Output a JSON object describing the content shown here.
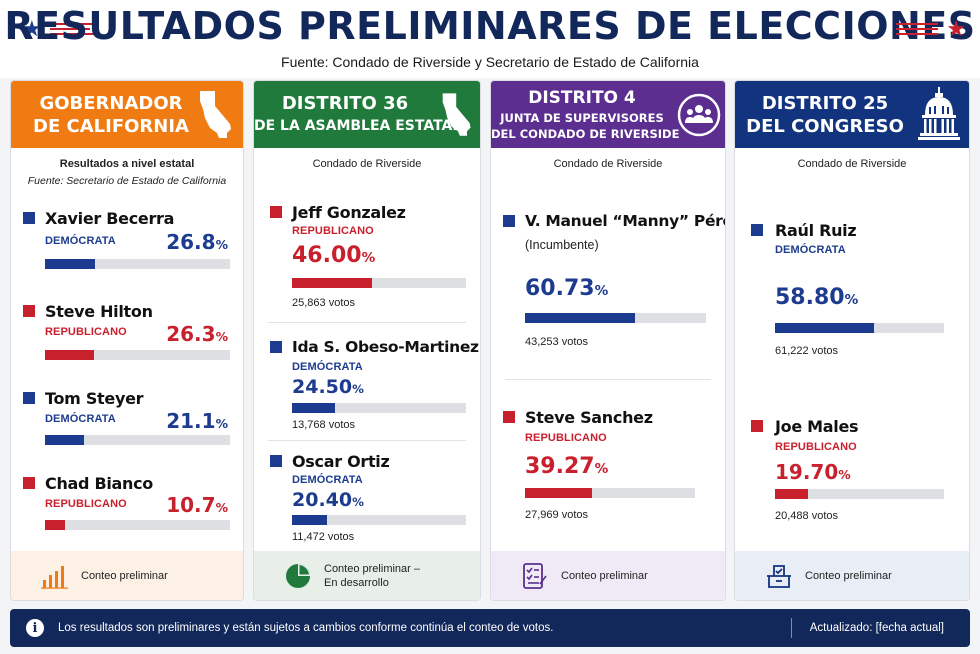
{
  "header": {
    "title": "RESULTADOS PRELIMINARES DE ELECCIONES",
    "subtitle": "Fuente: Condado de Riverside y Secretario de Estado de California",
    "star_icon": "star-icon"
  },
  "colors": {
    "governor": "#f07b12",
    "assembly": "#1f7a3c",
    "supervisors": "#5b2e8f",
    "congress": "#12347e",
    "democrat": "#1d3c8f",
    "republican": "#c8202d",
    "footer": "#12275a"
  },
  "cards": [
    {
      "title_line1": "GOBERNADOR",
      "title_line2": "DE CALIFORNIA",
      "icon": "california-map-icon",
      "scope": "Resultados a nivel estatal",
      "scope_source": "Fuente: Secretario de Estado de California",
      "candidates": [
        {
          "name": "Xavier Becerra",
          "party": "DEMÓCRATA",
          "percent": "26.8",
          "symbol": "%",
          "share": 0.268
        },
        {
          "name": "Steve Hilton",
          "party": "REPUBLICANO",
          "percent": "26.3",
          "symbol": "%",
          "share": 0.263
        },
        {
          "name": "Tom Steyer",
          "party": "DEMÓCRATA",
          "percent": "21.1",
          "symbol": "%",
          "share": 0.211
        },
        {
          "name": "Chad Bianco",
          "party": "REPUBLICANO",
          "percent": "10.7",
          "symbol": "%",
          "share": 0.107
        }
      ],
      "footer_text": "Conteo preliminar",
      "footer_icon": "bar-chart-icon"
    },
    {
      "title_line1": "DISTRITO 36",
      "title_line2": "DE LA ASAMBLEA ESTATAL",
      "icon": "california-map-icon",
      "scope": "Condado de Riverside",
      "candidates": [
        {
          "name": "Jeff Gonzalez",
          "party": "REPUBLICANO",
          "percent": "46.00",
          "symbol": "%",
          "votes": "25,863 votos",
          "share": 0.46
        },
        {
          "name": "Ida S. Obeso-Martinez",
          "party": "DEMÓCRATA",
          "percent": "24.50",
          "symbol": "%",
          "votes": "13,768 votos",
          "share": 0.245
        },
        {
          "name": "Oscar Ortiz",
          "party": "DEMÓCRATA",
          "percent": "20.40",
          "symbol": "%",
          "votes": "11,472 votos",
          "share": 0.204
        }
      ],
      "footer_text_line1": "Conteo preliminar –",
      "footer_text_line2": "En desarrollo",
      "footer_icon": "pie-chart-icon"
    },
    {
      "title_line1": "DISTRITO 4",
      "title_line2": "JUNTA DE SUPERVISORES",
      "title_line3": "DEL CONDADO DE RIVERSIDE",
      "icon": "people-group-icon",
      "scope": "Condado de Riverside",
      "candidates": [
        {
          "name": "V. Manuel “Manny” Pérez",
          "extra": "(Incumbente)",
          "percent": "60.73",
          "symbol": "%",
          "votes": "43,253 votos",
          "share": 0.6073
        },
        {
          "name": "Steve Sanchez",
          "party": "REPUBLICANO",
          "percent": "39.27",
          "symbol": "%",
          "votes": "27,969 votos",
          "share": 0.3927
        }
      ],
      "footer_text": "Conteo preliminar",
      "footer_icon": "checklist-icon"
    },
    {
      "title_line1": "DISTRITO 25",
      "title_line2": "DEL CONGRESO",
      "icon": "capitol-dome-icon",
      "scope": "Condado de Riverside",
      "candidates": [
        {
          "name": "Raúl Ruiz",
          "party": "DEMÓCRATA",
          "percent": "58.80",
          "symbol": "%",
          "votes": "61,222 votos",
          "share": 0.588
        },
        {
          "name": "Joe Males",
          "party": "REPUBLICANO",
          "percent": "19.70",
          "symbol": "%",
          "votes": "20,488 votos",
          "share": 0.197
        }
      ],
      "footer_text": "Conteo preliminar",
      "footer_icon": "ballot-box-icon"
    }
  ],
  "footer": {
    "note": "Los resultados son preliminares y están sujetos a cambios conforme continúa el conteo de votos.",
    "updated": "Actualizado: [fecha actual]",
    "icon": "info-icon"
  }
}
